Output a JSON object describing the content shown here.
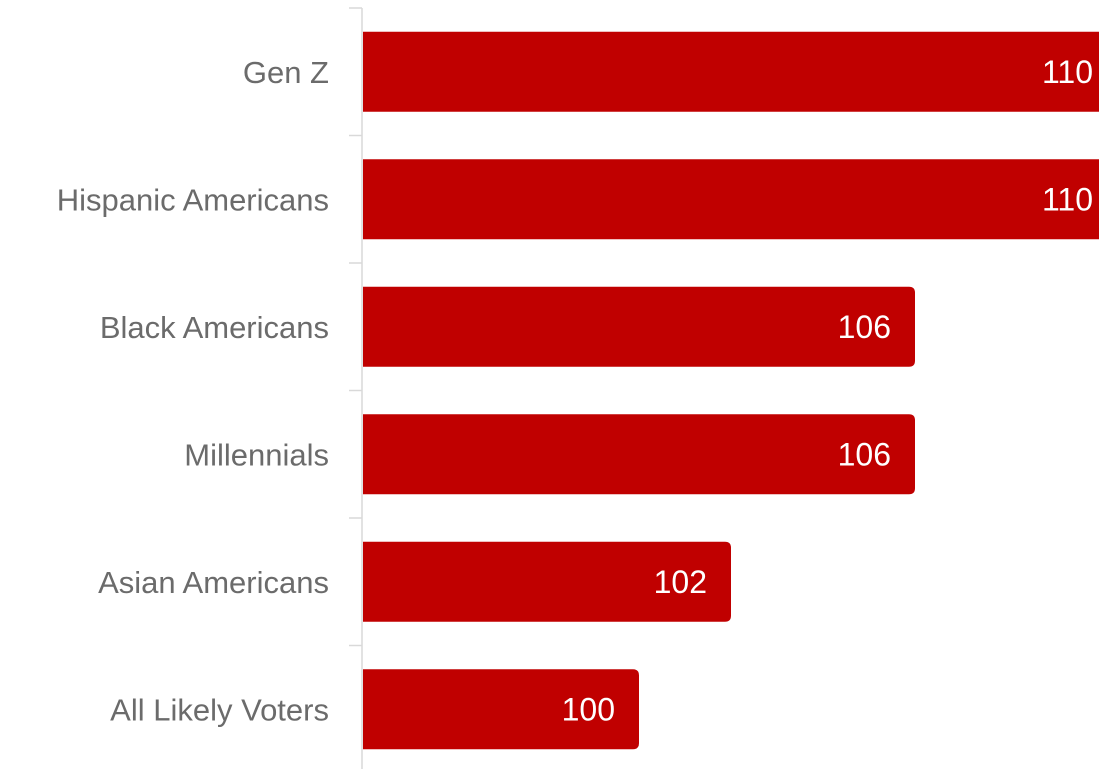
{
  "chart_data": {
    "type": "bar",
    "orientation": "horizontal",
    "categories": [
      "Gen Z",
      "Hispanic Americans",
      "Black Americans",
      "Millennials",
      "Asian Americans",
      "All Likely Voters"
    ],
    "values": [
      110,
      110,
      106,
      106,
      102,
      100
    ],
    "data_labels": [
      "110",
      "110",
      "106",
      "106",
      "102",
      "100"
    ],
    "title": "",
    "xlabel": "",
    "ylabel": "",
    "xlim": [
      94,
      110
    ],
    "grid": false,
    "legend": "none",
    "bar_color": "#c00000",
    "label_color": "#6b6b6b",
    "value_label_color": "#ffffff"
  }
}
